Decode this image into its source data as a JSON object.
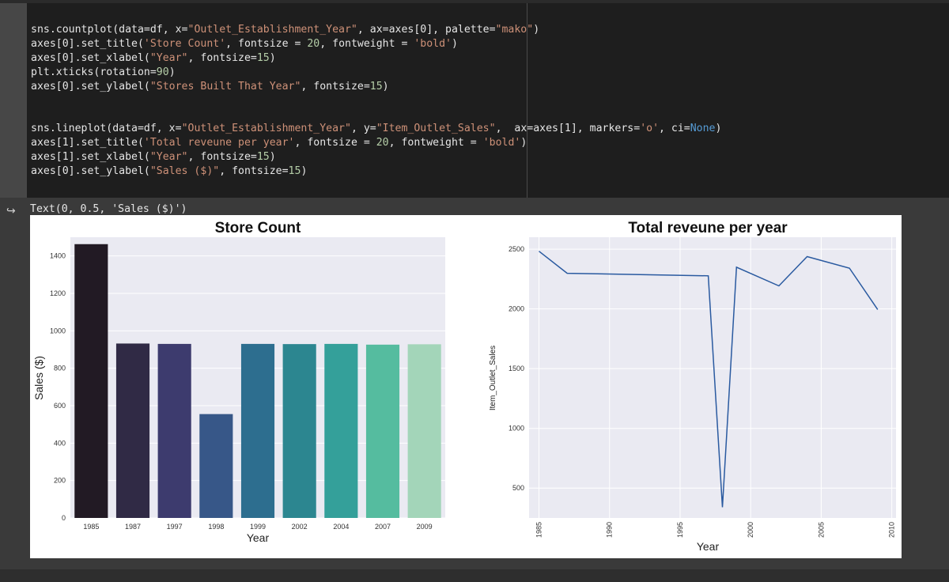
{
  "code_lines": [
    [
      [
        "sns.countplot(data=df, x=",
        "#e6e6e6"
      ],
      [
        "\"Outlet_Establishment_Year\"",
        "#ce9178"
      ],
      [
        ", ax=axes[0], palette=",
        "#e6e6e6"
      ],
      [
        "\"mako\"",
        "#ce9178"
      ],
      [
        ")",
        "#e6e6e6"
      ]
    ],
    [
      [
        "axes[0].set_title(",
        "#e6e6e6"
      ],
      [
        "'Store Count'",
        "#ce9178"
      ],
      [
        ", fontsize = ",
        "#e6e6e6"
      ],
      [
        "20",
        "#b5cea8"
      ],
      [
        ", fontweight = ",
        "#e6e6e6"
      ],
      [
        "'bold'",
        "#ce9178"
      ],
      [
        ")",
        "#e6e6e6"
      ]
    ],
    [
      [
        "axes[0].set_xlabel(",
        "#e6e6e6"
      ],
      [
        "\"Year\"",
        "#ce9178"
      ],
      [
        ", fontsize=",
        "#e6e6e6"
      ],
      [
        "15",
        "#b5cea8"
      ],
      [
        ")",
        "#e6e6e6"
      ]
    ],
    [
      [
        "plt.xticks(rotation=",
        "#e6e6e6"
      ],
      [
        "90",
        "#b5cea8"
      ],
      [
        ")",
        "#e6e6e6"
      ]
    ],
    [
      [
        "axes[0].set_ylabel(",
        "#e6e6e6"
      ],
      [
        "\"Stores Built That Year\"",
        "#ce9178"
      ],
      [
        ", fontsize=",
        "#e6e6e6"
      ],
      [
        "15",
        "#b5cea8"
      ],
      [
        ")",
        "#e6e6e6"
      ]
    ],
    [],
    [],
    [
      [
        "sns.lineplot(data=df, x=",
        "#e6e6e6"
      ],
      [
        "\"Outlet_Establishment_Year\"",
        "#ce9178"
      ],
      [
        ", y=",
        "#e6e6e6"
      ],
      [
        "\"Item_Outlet_Sales\"",
        "#ce9178"
      ],
      [
        ",  ax=axes[1], markers=",
        "#e6e6e6"
      ],
      [
        "'o'",
        "#ce9178"
      ],
      [
        ", ci=",
        "#e6e6e6"
      ],
      [
        "None",
        "#569cd6"
      ],
      [
        ")",
        "#e6e6e6"
      ]
    ],
    [
      [
        "axes[1].set_title(",
        "#e6e6e6"
      ],
      [
        "'Total reveune per year'",
        "#ce9178"
      ],
      [
        ", fontsize = ",
        "#e6e6e6"
      ],
      [
        "20",
        "#b5cea8"
      ],
      [
        ", fontweight = ",
        "#e6e6e6"
      ],
      [
        "'bold'",
        "#ce9178"
      ],
      [
        ")",
        "#e6e6e6"
      ]
    ],
    [
      [
        "axes[1].set_xlabel(",
        "#e6e6e6"
      ],
      [
        "\"Year\"",
        "#ce9178"
      ],
      [
        ", fontsize=",
        "#e6e6e6"
      ],
      [
        "15",
        "#b5cea8"
      ],
      [
        ")",
        "#e6e6e6"
      ]
    ],
    [
      [
        "axes[0].set_ylabel(",
        "#e6e6e6"
      ],
      [
        "\"Sales ($)\"",
        "#ce9178"
      ],
      [
        ", fontsize=",
        "#e6e6e6"
      ],
      [
        "15",
        "#b5cea8"
      ],
      [
        ")",
        "#e6e6e6"
      ]
    ]
  ],
  "output": {
    "icon": "output-arrow-icon",
    "text": "Text(0, 0.5, 'Sales ($)')"
  },
  "chart_data": [
    {
      "type": "bar",
      "title": "Store Count",
      "xlabel": "Year",
      "ylabel": "Sales ($)",
      "categories": [
        "1985",
        "1987",
        "1997",
        "1998",
        "1999",
        "2002",
        "2004",
        "2007",
        "2009"
      ],
      "values": [
        1463,
        932,
        930,
        555,
        930,
        929,
        930,
        926,
        928
      ],
      "colors": [
        "#221a24",
        "#302a45",
        "#3d3b6e",
        "#375788",
        "#2d6e8f",
        "#2c8690",
        "#34a09a",
        "#55bc9f",
        "#a3d5b9"
      ],
      "ylim": [
        0,
        1500
      ],
      "yticks": [
        0,
        200,
        400,
        600,
        800,
        1000,
        1200,
        1400
      ],
      "grid": true
    },
    {
      "type": "line",
      "title": "Total reveune per year",
      "xlabel": "Year",
      "ylabel": "Item_Outlet_Sales",
      "x": [
        1985,
        1987,
        1997,
        1998,
        1999,
        2002,
        2004,
        2007,
        2009
      ],
      "y": [
        2483,
        2298,
        2277,
        340,
        2349,
        2193,
        2438,
        2341,
        1995
      ],
      "color": "#2a5aa0",
      "xlim": [
        1984.3,
        2010.3
      ],
      "ylim": [
        250,
        2600
      ],
      "xticks": [
        1985,
        1990,
        1995,
        2000,
        2005,
        2010
      ],
      "yticks": [
        500,
        1000,
        1500,
        2000,
        2500
      ],
      "grid": true
    }
  ]
}
